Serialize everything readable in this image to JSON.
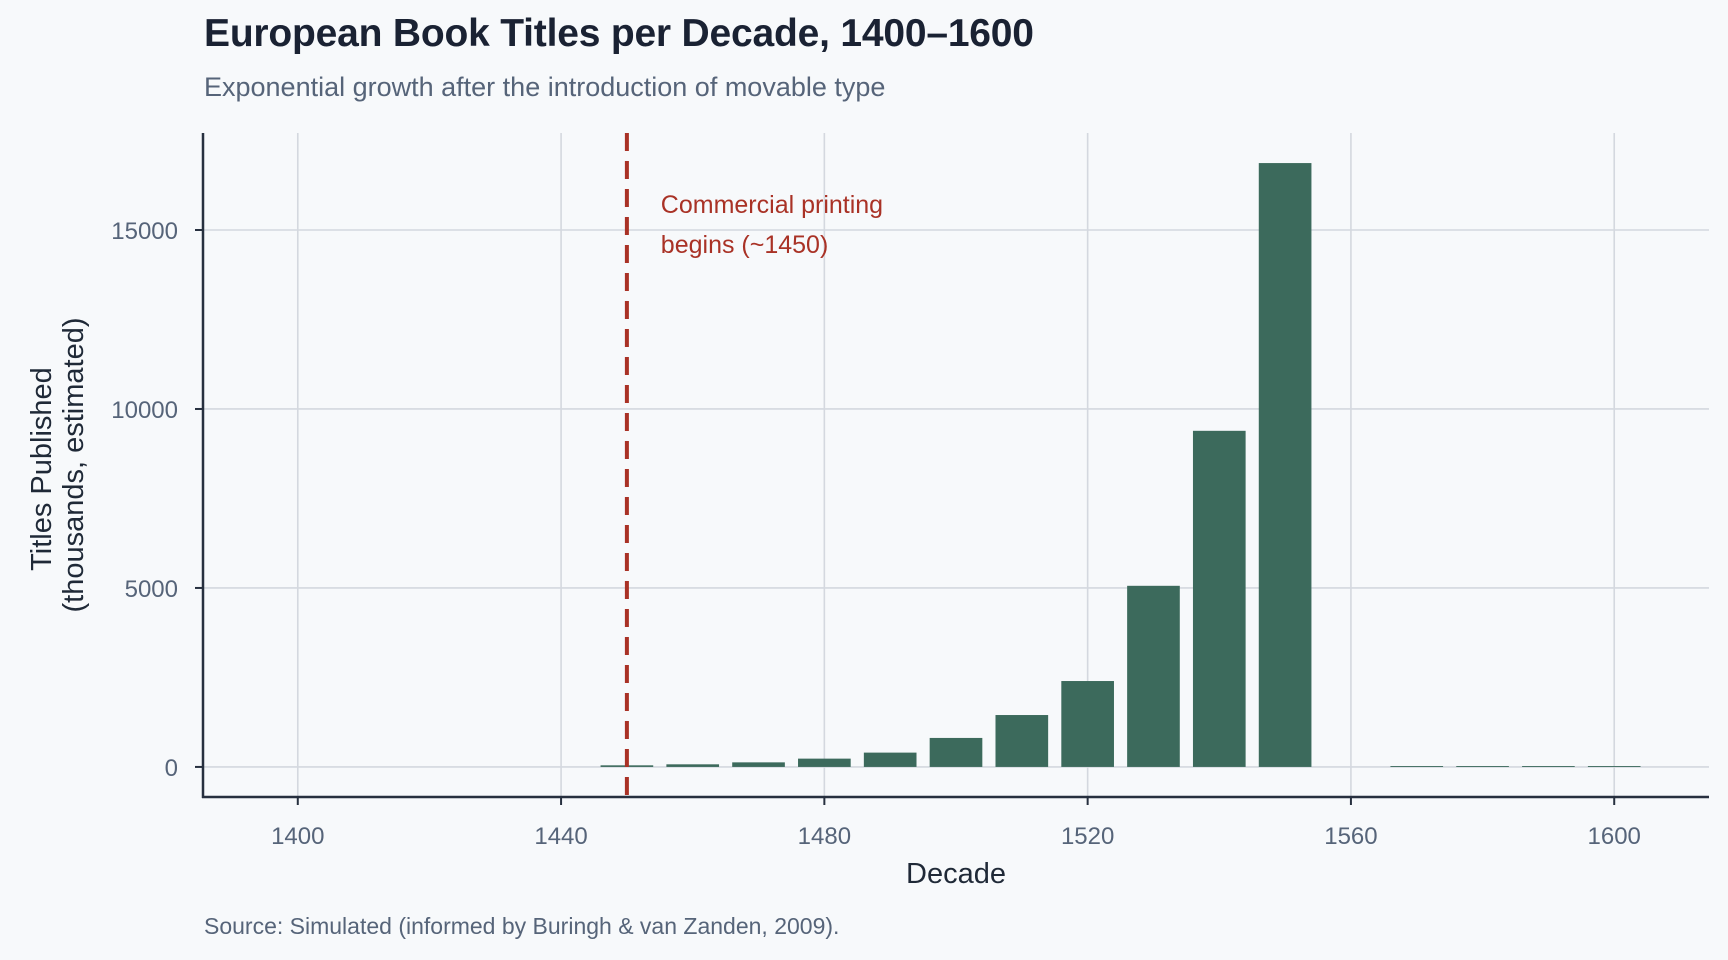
{
  "header": {
    "title": "European Book Titles per Decade, 1400–1600",
    "subtitle": "Exponential growth after the introduction of movable type"
  },
  "footer": {
    "source": "Source: Simulated (informed by Buringh & van Zanden, 2009)."
  },
  "colors": {
    "background": "#f7f9fb",
    "bar": "#3c6a5c",
    "annotation": "#a93226",
    "grid": "#d4d8df",
    "axis": "#27303f",
    "tick_text": "#566479"
  },
  "chart_data": {
    "type": "bar",
    "title": "European Book Titles per Decade, 1400–1600",
    "subtitle": "Exponential growth after the introduction of movable type",
    "xlabel": "Decade",
    "ylabel_lines": [
      "Titles Published",
      "(thousands, estimated)"
    ],
    "ylabel": "Titles Published (thousands, estimated)",
    "x": [
      1450,
      1460,
      1470,
      1480,
      1490,
      1500,
      1510,
      1520,
      1530,
      1540,
      1550,
      1560,
      1570,
      1580,
      1590,
      1600
    ],
    "values": [
      45,
      73,
      128,
      232,
      400,
      810,
      1450,
      2400,
      5060,
      9390,
      16870,
      0,
      10,
      10,
      10,
      10
    ],
    "bar_width_years": 8,
    "xlim": [
      1385.6,
      1614.4
    ],
    "ylim": [
      -840,
      17710
    ],
    "xticks": [
      1400,
      1440,
      1480,
      1520,
      1560,
      1600
    ],
    "xtick_labels": [
      "1400",
      "1440",
      "1480",
      "1520",
      "1560",
      "1600"
    ],
    "yticks": [
      0,
      5000,
      10000,
      15000
    ],
    "ytick_labels": [
      "0",
      "5000",
      "10000",
      "15000"
    ],
    "grid": true,
    "legend": null,
    "annotations": [
      {
        "type": "vline",
        "x": 1450,
        "style": "dashed",
        "text_lines": [
          "Commercial printing",
          "begins (~1450)"
        ],
        "text_x": 1455,
        "text_y_top": 16000
      }
    ],
    "source": "Source: Simulated (informed by Buringh & van Zanden, 2009)."
  }
}
